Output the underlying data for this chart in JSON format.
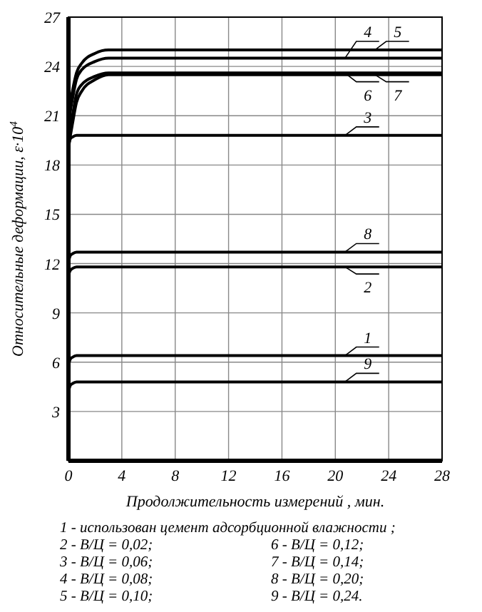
{
  "chart_data": {
    "type": "line",
    "xlabel": "Продолжительность измерений , мин.",
    "ylabel": "Относительные деформации, ε·10$^{4}$",
    "x": [
      0,
      0.15,
      0.3,
      0.6,
      1,
      2,
      3,
      4,
      28
    ],
    "series": [
      {
        "name": "5",
        "color": "#000000",
        "values": [
          20.5,
          21.8,
          22.5,
          23.6,
          24.2,
          24.8,
          25,
          25,
          25
        ]
      },
      {
        "name": "4",
        "color": "#000000",
        "values": [
          20,
          21.3,
          22,
          23.2,
          23.8,
          24.3,
          24.5,
          24.5,
          24.5
        ]
      },
      {
        "name": "6",
        "color": "#000000",
        "values": [
          19.5,
          20.3,
          21,
          22.3,
          22.9,
          23.4,
          23.6,
          23.6,
          23.6
        ]
      },
      {
        "name": "7",
        "color": "#000000",
        "values": [
          19,
          19.8,
          20.5,
          21.8,
          22.5,
          23.2,
          23.5,
          23.5,
          23.5
        ]
      },
      {
        "name": "3",
        "color": "#000000",
        "values": [
          19.2,
          19.6,
          19.7,
          19.8,
          19.8,
          19.8,
          19.8,
          19.8,
          19.8
        ]
      },
      {
        "name": "8",
        "color": "#000000",
        "values": [
          12.1,
          12.5,
          12.6,
          12.7,
          12.7,
          12.7,
          12.7,
          12.7,
          12.7
        ]
      },
      {
        "name": "2",
        "color": "#000000",
        "values": [
          11.3,
          11.6,
          11.7,
          11.8,
          11.8,
          11.8,
          11.8,
          11.8,
          11.8
        ]
      },
      {
        "name": "1",
        "color": "#000000",
        "values": [
          5.8,
          6.2,
          6.3,
          6.4,
          6.4,
          6.4,
          6.4,
          6.4,
          6.4
        ]
      },
      {
        "name": "9",
        "color": "#000000",
        "values": [
          4.2,
          4.6,
          4.7,
          4.8,
          4.8,
          4.8,
          4.8,
          4.8,
          4.8
        ]
      }
    ],
    "xlim": [
      0,
      28
    ],
    "xticks": [
      0,
      4,
      8,
      12,
      16,
      20,
      24,
      28
    ],
    "ylim": [
      0,
      27
    ],
    "yticks": [
      {
        "value": 0,
        "label": null
      },
      3,
      6,
      9,
      12,
      15,
      18,
      21,
      24,
      27
    ],
    "grid": true,
    "marker": "none",
    "line_style": "solid",
    "legend": "right",
    "annotations": [
      "1 - использован цемент адсорбционной влажности ;",
      "2 - В/Ц = 0,02;",
      "6 - В/Ц = 0,12;",
      "3 - В/Ц = 0,06;",
      "7 - В/Ц = 0,14;",
      "4 - В/Ц = 0,08;",
      "8 - В/Ц = 0,20;",
      "5 - В/Ц = 0,10;",
      "9 - В/Ц = 0,24."
    ]
  }
}
